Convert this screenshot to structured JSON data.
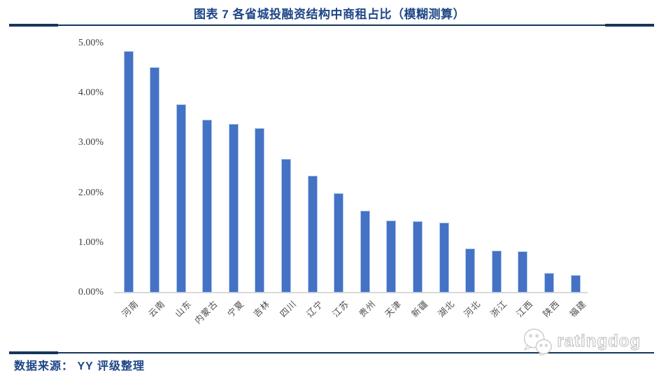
{
  "header": {
    "title": "图表 7 各省城投融资结构中商租占比（模糊测算）"
  },
  "chart_data": {
    "type": "bar",
    "title": "图表 7 各省城投融资结构中商租占比（模糊测算）",
    "categories": [
      "河南",
      "云南",
      "山东",
      "内蒙古",
      "宁夏",
      "吉林",
      "四川",
      "辽宁",
      "江苏",
      "贵州",
      "天津",
      "新疆",
      "湖北",
      "河北",
      "浙江",
      "江西",
      "陕西",
      "福建"
    ],
    "values": [
      4.85,
      4.52,
      3.78,
      3.47,
      3.39,
      3.3,
      2.68,
      2.35,
      2.0,
      1.65,
      1.45,
      1.43,
      1.41,
      0.89,
      0.84,
      0.83,
      0.4,
      0.35
    ],
    "unit": "%",
    "xlabel": "",
    "ylabel": "",
    "ylim": [
      0,
      5
    ],
    "ytick_labels": [
      "0.00%",
      "1.00%",
      "2.00%",
      "3.00%",
      "4.00%",
      "5.00%"
    ],
    "grid": false,
    "legend": "none",
    "bar_color": "#4472C4"
  },
  "colors": {
    "title_blue": "#1E4687",
    "rule_navy": "#16365C",
    "bar_blue": "#4472C4",
    "bar_edge": "#AEC6EC",
    "axis_gray": "#D9D9D9",
    "tick_text": "#404040"
  },
  "footer": {
    "source": "数据来源： YY 评级整理",
    "logo_text": "ratingdog"
  }
}
